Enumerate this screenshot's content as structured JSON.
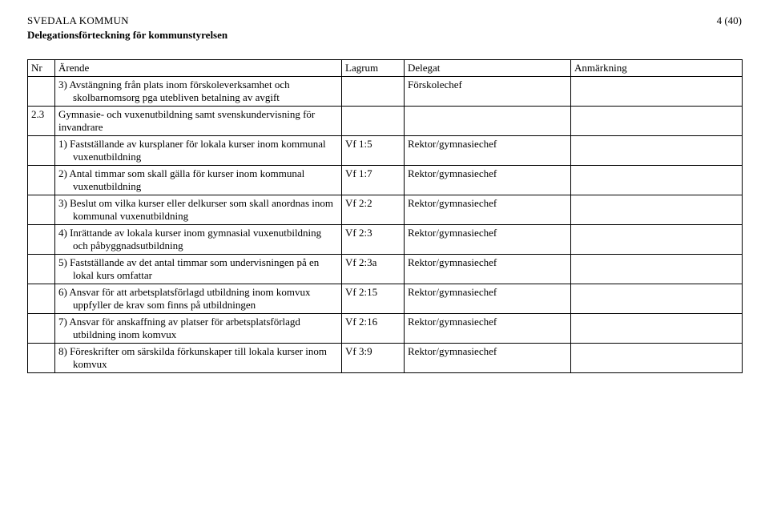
{
  "header": {
    "org": "SVEDALA KOMMUN",
    "subtitle": "Delegationsförteckning för kommunstyrelsen",
    "page_indicator": "4 (40)"
  },
  "columns": {
    "nr": "Nr",
    "arende": "Ärende",
    "lagrum": "Lagrum",
    "delegat": "Delegat",
    "anmarkning": "Anmärkning"
  },
  "rows": [
    {
      "nr": "",
      "arende": "3) Avstängning från plats inom förskoleverksamhet och skolbarnomsorg pga utebliven betalning av avgift",
      "lagrum": "",
      "delegat": "Förskolechef",
      "anm": ""
    },
    {
      "nr": "2.3",
      "arende": "Gymnasie- och vuxenutbildning samt svenskundervisning för invandrare",
      "lagrum": "",
      "delegat": "",
      "anm": ""
    },
    {
      "nr": "",
      "arende": "1) Fastställande av kursplaner för lokala kurser inom kommunal vuxenutbildning",
      "lagrum": "Vf 1:5",
      "delegat": "Rektor/gymnasiechef",
      "anm": ""
    },
    {
      "nr": "",
      "arende": "2) Antal timmar som skall gälla för kurser inom kommunal vuxenutbildning",
      "lagrum": "Vf 1:7",
      "delegat": "Rektor/gymnasiechef",
      "anm": ""
    },
    {
      "nr": "",
      "arende": "3) Beslut om vilka kurser eller delkurser som skall anordnas inom kommunal vuxenutbildning",
      "lagrum": "Vf 2:2",
      "delegat": "Rektor/gymnasiechef",
      "anm": ""
    },
    {
      "nr": "",
      "arende": "4) Inrättande av lokala kurser inom gymnasial vuxenutbildning och påbyggnadsutbildning",
      "lagrum": "Vf 2:3",
      "delegat": "Rektor/gymnasiechef",
      "anm": ""
    },
    {
      "nr": "",
      "arende": "5) Fastställande av det antal timmar som undervisningen på en lokal kurs omfattar",
      "lagrum": "Vf 2:3a",
      "delegat": "Rektor/gymnasiechef",
      "anm": ""
    },
    {
      "nr": "",
      "arende": "6) Ansvar för att arbetsplatsförlagd utbildning inom komvux uppfyller de krav som finns på utbildningen",
      "lagrum": "Vf 2:15",
      "delegat": "Rektor/gymnasiechef",
      "anm": ""
    },
    {
      "nr": "",
      "arende": "7) Ansvar för anskaffning av platser för arbetsplatsförlagd utbildning inom komvux",
      "lagrum": "Vf 2:16",
      "delegat": "Rektor/gymnasiechef",
      "anm": ""
    },
    {
      "nr": "",
      "arende": "8) Föreskrifter om särskilda förkunskaper till lokala kurser inom komvux",
      "lagrum": "Vf 3:9",
      "delegat": "Rektor/gymnasiechef",
      "anm": ""
    }
  ]
}
